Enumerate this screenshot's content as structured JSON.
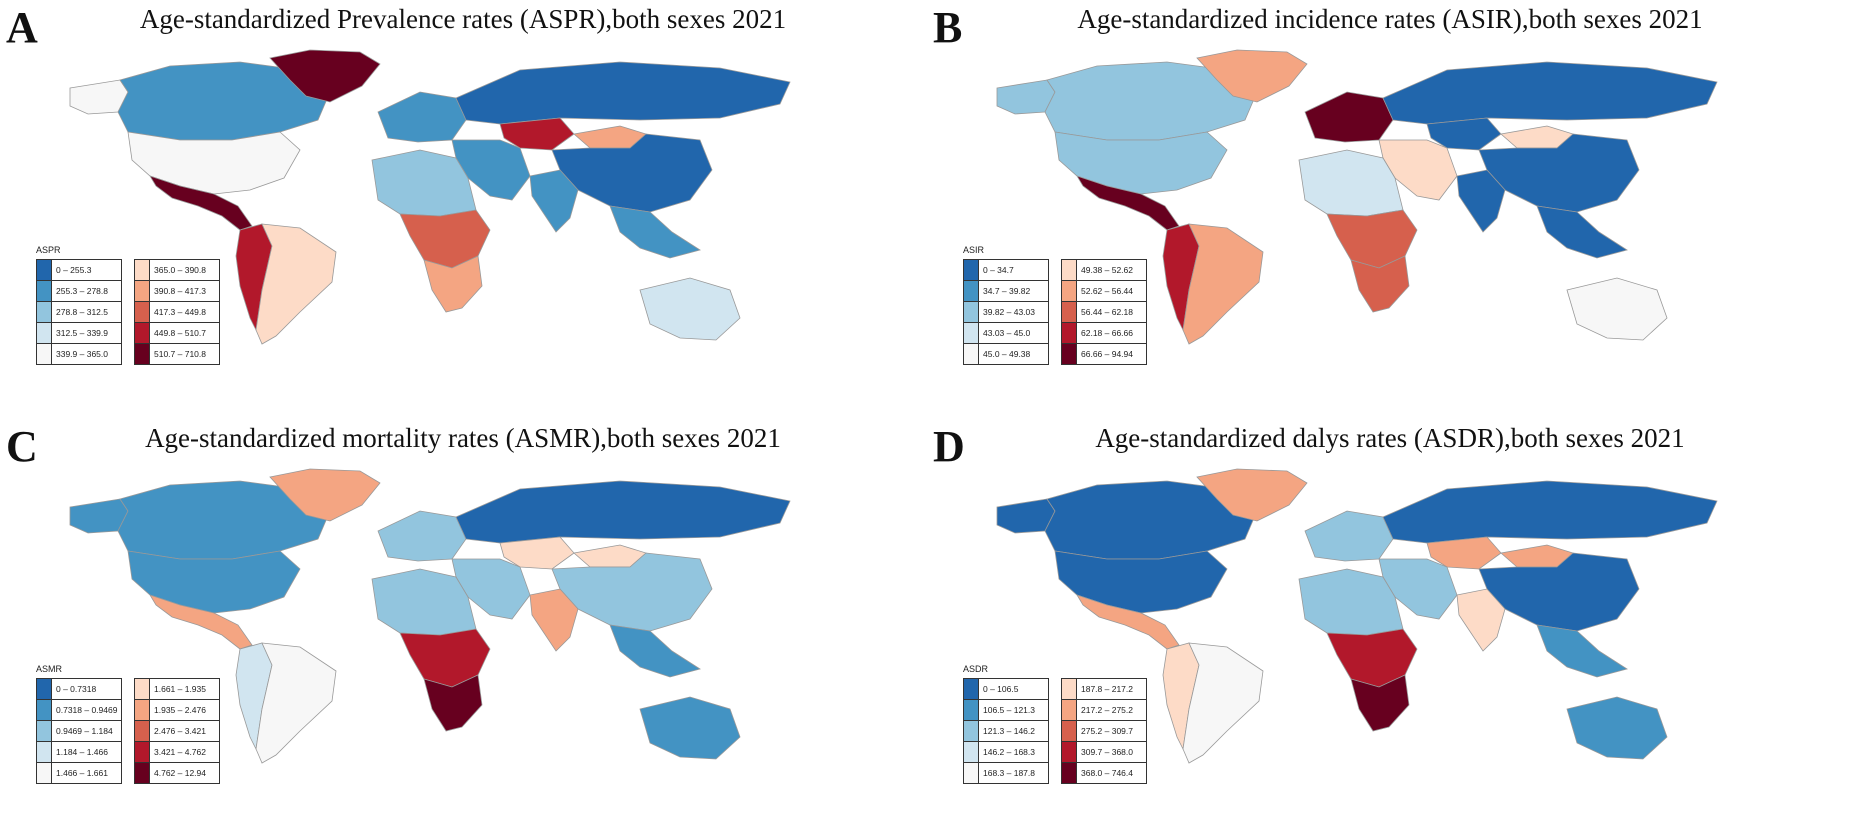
{
  "figure": {
    "panels": [
      {
        "letter": "A",
        "title": "Age-standardized Prevalence rates (ASPR),both sexes 2021",
        "legend_title": "ASPR",
        "legend": [
          {
            "label": "0 – 255.3",
            "color": "#2166ac"
          },
          {
            "label": "255.3 – 278.8",
            "color": "#4393c3"
          },
          {
            "label": "278.8 – 312.5",
            "color": "#92c5de"
          },
          {
            "label": "312.5 – 339.9",
            "color": "#d1e5f0"
          },
          {
            "label": "339.9 – 365.0",
            "color": "#f7f7f7"
          },
          {
            "label": "365.0 – 390.8",
            "color": "#fddbc7"
          },
          {
            "label": "390.8 – 417.3",
            "color": "#f4a582"
          },
          {
            "label": "417.3 – 449.8",
            "color": "#d6604d"
          },
          {
            "label": "449.8 – 510.7",
            "color": "#b2182b"
          },
          {
            "label": "510.7 – 710.8",
            "color": "#67001f"
          }
        ]
      },
      {
        "letter": "B",
        "title": "Age-standardized incidence rates (ASIR),both sexes 2021",
        "legend_title": "ASIR",
        "legend": [
          {
            "label": "0 – 34.7",
            "color": "#2166ac"
          },
          {
            "label": "34.7 – 39.82",
            "color": "#4393c3"
          },
          {
            "label": "39.82 – 43.03",
            "color": "#92c5de"
          },
          {
            "label": "43.03 – 45.0",
            "color": "#d1e5f0"
          },
          {
            "label": "45.0 – 49.38",
            "color": "#f7f7f7"
          },
          {
            "label": "49.38 – 52.62",
            "color": "#fddbc7"
          },
          {
            "label": "52.62 – 56.44",
            "color": "#f4a582"
          },
          {
            "label": "56.44 – 62.18",
            "color": "#d6604d"
          },
          {
            "label": "62.18 – 66.66",
            "color": "#b2182b"
          },
          {
            "label": "66.66 – 94.94",
            "color": "#67001f"
          }
        ]
      },
      {
        "letter": "C",
        "title": "Age-standardized mortality rates (ASMR),both sexes 2021",
        "legend_title": "ASMR",
        "legend": [
          {
            "label": "0 – 0.7318",
            "color": "#2166ac"
          },
          {
            "label": "0.7318 – 0.9469",
            "color": "#4393c3"
          },
          {
            "label": "0.9469 – 1.184",
            "color": "#92c5de"
          },
          {
            "label": "1.184 – 1.466",
            "color": "#d1e5f0"
          },
          {
            "label": "1.466 – 1.661",
            "color": "#f7f7f7"
          },
          {
            "label": "1.661 – 1.935",
            "color": "#fddbc7"
          },
          {
            "label": "1.935 – 2.476",
            "color": "#f4a582"
          },
          {
            "label": "2.476 – 3.421",
            "color": "#d6604d"
          },
          {
            "label": "3.421 – 4.762",
            "color": "#b2182b"
          },
          {
            "label": "4.762 – 12.94",
            "color": "#67001f"
          }
        ]
      },
      {
        "letter": "D",
        "title": "Age-standardized dalys rates (ASDR),both sexes 2021",
        "legend_title": "ASDR",
        "legend": [
          {
            "label": "0 – 106.5",
            "color": "#2166ac"
          },
          {
            "label": "106.5 – 121.3",
            "color": "#4393c3"
          },
          {
            "label": "121.3 – 146.2",
            "color": "#92c5de"
          },
          {
            "label": "146.2 – 168.3",
            "color": "#d1e5f0"
          },
          {
            "label": "168.3 – 187.8",
            "color": "#f7f7f7"
          },
          {
            "label": "187.8 – 217.2",
            "color": "#fddbc7"
          },
          {
            "label": "217.2 – 275.2",
            "color": "#f4a582"
          },
          {
            "label": "275.2 – 309.7",
            "color": "#d6604d"
          },
          {
            "label": "309.7 – 368.0",
            "color": "#b2182b"
          },
          {
            "label": "368.0 – 746.4",
            "color": "#67001f"
          }
        ]
      }
    ]
  },
  "map_fills": [
    {
      "alaska": "#f7f7f7",
      "canada": "#4393c3",
      "greenland": "#67001f",
      "usa": "#f7f7f7",
      "mexico_central": "#67001f",
      "south_america": "#fddbc7",
      "andes": "#b2182b",
      "europe": "#4393c3",
      "russia": "#2166ac",
      "kazakhstan": "#b2182b",
      "china": "#2166ac",
      "mongolia": "#f4a582",
      "middle_east": "#4393c3",
      "india": "#4393c3",
      "africa_north": "#92c5de",
      "africa_central": "#d6604d",
      "africa_south": "#f4a582",
      "australia": "#d1e5f0",
      "se_asia": "#4393c3"
    },
    {
      "alaska": "#92c5de",
      "canada": "#92c5de",
      "greenland": "#f4a582",
      "usa": "#92c5de",
      "mexico_central": "#67001f",
      "south_america": "#f4a582",
      "andes": "#b2182b",
      "europe": "#67001f",
      "russia": "#2166ac",
      "kazakhstan": "#2166ac",
      "china": "#2166ac",
      "mongolia": "#fddbc7",
      "middle_east": "#fddbc7",
      "india": "#2166ac",
      "africa_north": "#d1e5f0",
      "africa_central": "#d6604d",
      "africa_south": "#d6604d",
      "australia": "#f7f7f7",
      "se_asia": "#2166ac"
    },
    {
      "alaska": "#4393c3",
      "canada": "#4393c3",
      "greenland": "#f4a582",
      "usa": "#4393c3",
      "mexico_central": "#f4a582",
      "south_america": "#f7f7f7",
      "andes": "#d1e5f0",
      "europe": "#92c5de",
      "russia": "#2166ac",
      "kazakhstan": "#fddbc7",
      "china": "#92c5de",
      "mongolia": "#fddbc7",
      "middle_east": "#92c5de",
      "india": "#f4a582",
      "africa_north": "#92c5de",
      "africa_central": "#b2182b",
      "africa_south": "#67001f",
      "australia": "#4393c3",
      "se_asia": "#4393c3"
    },
    {
      "alaska": "#2166ac",
      "canada": "#2166ac",
      "greenland": "#f4a582",
      "usa": "#2166ac",
      "mexico_central": "#f4a582",
      "south_america": "#f7f7f7",
      "andes": "#fddbc7",
      "europe": "#92c5de",
      "russia": "#2166ac",
      "kazakhstan": "#f4a582",
      "china": "#2166ac",
      "mongolia": "#f4a582",
      "middle_east": "#92c5de",
      "india": "#fddbc7",
      "africa_north": "#92c5de",
      "africa_central": "#b2182b",
      "africa_south": "#67001f",
      "australia": "#4393c3",
      "se_asia": "#4393c3"
    }
  ]
}
